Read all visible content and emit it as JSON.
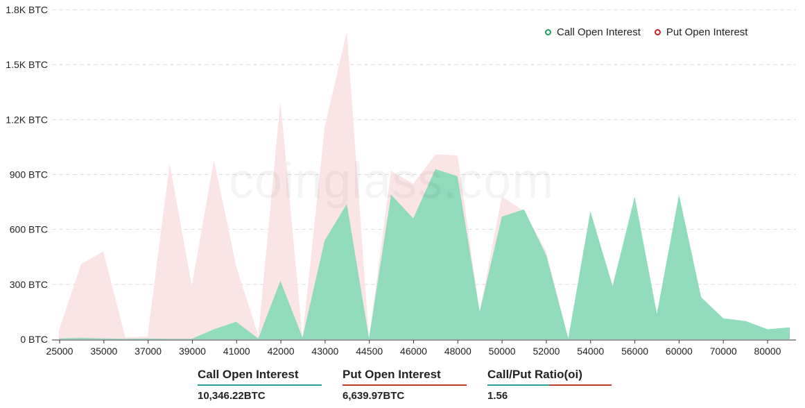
{
  "legend": {
    "call_label": "Call Open Interest",
    "put_label": "Put  Open Interest"
  },
  "watermark": "coinglass.com",
  "stats": {
    "call_oi_label": "Call Open Interest",
    "call_oi_value": "10,346.22BTC",
    "put_oi_label": "Put Open Interest",
    "put_oi_value": "6,639.97BTC",
    "ratio_label": "Call/Put Ratio(oi)",
    "ratio_value": "1.56"
  },
  "colors": {
    "call": "#7fd8b4",
    "put": "#fbe1e3",
    "call_dot": "#1a9e5c",
    "put_dot": "#cc2222",
    "call_underline": "#2a9d8f",
    "put_underline": "#c0392b",
    "ratio_underline_left": "#2a9d8f",
    "ratio_underline_right": "#c0392b"
  },
  "chart_data": {
    "type": "area",
    "x_tick_labels": [
      "25000",
      "35000",
      "37000",
      "39000",
      "41000",
      "42000",
      "43000",
      "44500",
      "46000",
      "48000",
      "50000",
      "52000",
      "54000",
      "56000",
      "60000",
      "70000",
      "80000"
    ],
    "y_tick_labels": [
      "0 BTC",
      "300 BTC",
      "600 BTC",
      "900 BTC",
      "1.2K BTC",
      "1.5K BTC",
      "1.8K BTC"
    ],
    "ylim": [
      0,
      1800
    ],
    "series": [
      {
        "name": "Call Open Interest",
        "values": [
          5,
          8,
          5,
          3,
          4,
          3,
          3,
          55,
          95,
          5,
          320,
          10,
          540,
          740,
          5,
          790,
          660,
          930,
          890,
          150,
          670,
          710,
          460,
          5,
          700,
          290,
          780,
          140,
          790,
          230,
          115,
          100,
          55,
          65
        ]
      },
      {
        "name": "Put  Open Interest",
        "values": [
          50,
          410,
          480,
          10,
          15,
          960,
          290,
          980,
          400,
          20,
          1300,
          10,
          1160,
          1680,
          5,
          920,
          850,
          1010,
          1005,
          150,
          780,
          700,
          480,
          5,
          680,
          300,
          720,
          130,
          780,
          220,
          110,
          95,
          50,
          55
        ]
      }
    ]
  }
}
